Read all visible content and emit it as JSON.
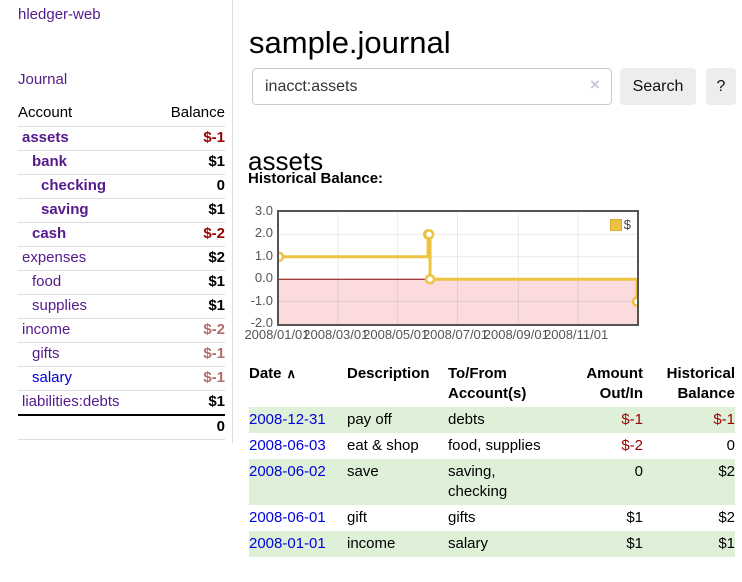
{
  "sidebar": {
    "app_title": "hledger-web",
    "journal_link": "Journal",
    "accounts_header": {
      "account": "Account",
      "balance": "Balance"
    },
    "accounts": [
      {
        "name": "assets",
        "indent": 1,
        "bold": true,
        "balance": "$-1",
        "balance_class": "neg"
      },
      {
        "name": "bank",
        "indent": 2,
        "bold": true,
        "balance": "$1",
        "balance_class": ""
      },
      {
        "name": "checking",
        "indent": 3,
        "bold": true,
        "balance": "0",
        "balance_class": ""
      },
      {
        "name": "saving",
        "indent": 3,
        "bold": true,
        "balance": "$1",
        "balance_class": ""
      },
      {
        "name": "cash",
        "indent": 2,
        "bold": true,
        "balance": "$-2",
        "balance_class": "neg"
      },
      {
        "name": "expenses",
        "indent": 1,
        "bold": false,
        "balance": "$2",
        "balance_class": ""
      },
      {
        "name": "food",
        "indent": 2,
        "bold": false,
        "balance": "$1",
        "balance_class": ""
      },
      {
        "name": "supplies",
        "indent": 2,
        "bold": false,
        "balance": "$1",
        "balance_class": ""
      },
      {
        "name": "income",
        "indent": 1,
        "bold": false,
        "balance": "$-2",
        "balance_class": "neg-dim"
      },
      {
        "name": "gifts",
        "indent": 2,
        "bold": false,
        "balance": "$-1",
        "balance_class": "neg-dim"
      },
      {
        "name": "salary",
        "indent": 2,
        "bold": false,
        "balance": "$-1",
        "balance_class": "neg-dim",
        "link": "blue"
      },
      {
        "name": "liabilities:debts",
        "indent": 1,
        "bold": false,
        "balance": "$1",
        "balance_class": ""
      }
    ],
    "total": "0"
  },
  "main": {
    "title": "sample.journal",
    "search": {
      "value": "inacct:assets",
      "clear_icon": "×",
      "button_label": "Search",
      "help_label": "?"
    },
    "account_heading": "assets",
    "chart_title_label": "Historical Balance:"
  },
  "chart_data": {
    "type": "line",
    "step": true,
    "title": "Historical Balance",
    "series": [
      {
        "name": "$",
        "color": "#edc240",
        "points": [
          [
            "2008-01-01",
            1
          ],
          [
            "2008-06-01",
            2
          ],
          [
            "2008-06-02",
            2
          ],
          [
            "2008-06-03",
            0
          ],
          [
            "2008-12-31",
            -1
          ]
        ]
      }
    ],
    "x_ticks": [
      "2008/01/01",
      "2008/03/01",
      "2008/05/01",
      "2008/07/01",
      "2008/09/01",
      "2008/11/01"
    ],
    "y_ticks": [
      3.0,
      2.0,
      1.0,
      0.0,
      -1.0,
      -2.0
    ],
    "xlim": [
      "2008-01-01",
      "2008-12-31"
    ],
    "ylim": [
      -2,
      3
    ],
    "legend": "$",
    "legend_position": "top-right",
    "grid": true,
    "zero_line_color": "#8b0000",
    "negative_region_color": "#fbdbdb",
    "gridline_color": "rgba(0,0,0,0.08)"
  },
  "register": {
    "sort_icon": "∧",
    "headers": [
      {
        "lines": [
          "Date"
        ],
        "align": "left",
        "sort": true
      },
      {
        "lines": [
          "Description"
        ],
        "align": "left"
      },
      {
        "lines": [
          "To/From",
          "Account(s)"
        ],
        "align": "left"
      },
      {
        "lines": [
          "Amount",
          "Out/In"
        ],
        "align": "right"
      },
      {
        "lines": [
          "Historical",
          "Balance"
        ],
        "align": "right"
      }
    ],
    "rows": [
      {
        "date": "2008-12-31",
        "description": "pay off",
        "accounts": "debts",
        "amount": "$-1",
        "amount_neg": true,
        "balance": "$-1",
        "balance_neg": true
      },
      {
        "date": "2008-06-03",
        "description": "eat & shop",
        "accounts": "food, supplies",
        "amount": "$-2",
        "amount_neg": true,
        "balance": "0",
        "balance_neg": false
      },
      {
        "date": "2008-06-02",
        "description": "save",
        "accounts": "saving, checking",
        "amount": "0",
        "amount_neg": false,
        "balance": "$2",
        "balance_neg": false
      },
      {
        "date": "2008-06-01",
        "description": "gift",
        "accounts": "gifts",
        "amount": "$1",
        "amount_neg": false,
        "balance": "$2",
        "balance_neg": false
      },
      {
        "date": "2008-01-01",
        "description": "income",
        "accounts": "salary",
        "amount": "$1",
        "amount_neg": false,
        "balance": "$1",
        "balance_neg": false
      }
    ]
  },
  "colors": {
    "link_purple": "#551a8b",
    "link_blue": "#0000dd",
    "negative": "#990000",
    "negative_dim": "#b36b6b",
    "row_green": "#dff0d8",
    "series_yellow": "#edc240",
    "zero_line": "#8b0000",
    "negative_region": "#fbdbdb",
    "border_gray": "#ddd"
  }
}
